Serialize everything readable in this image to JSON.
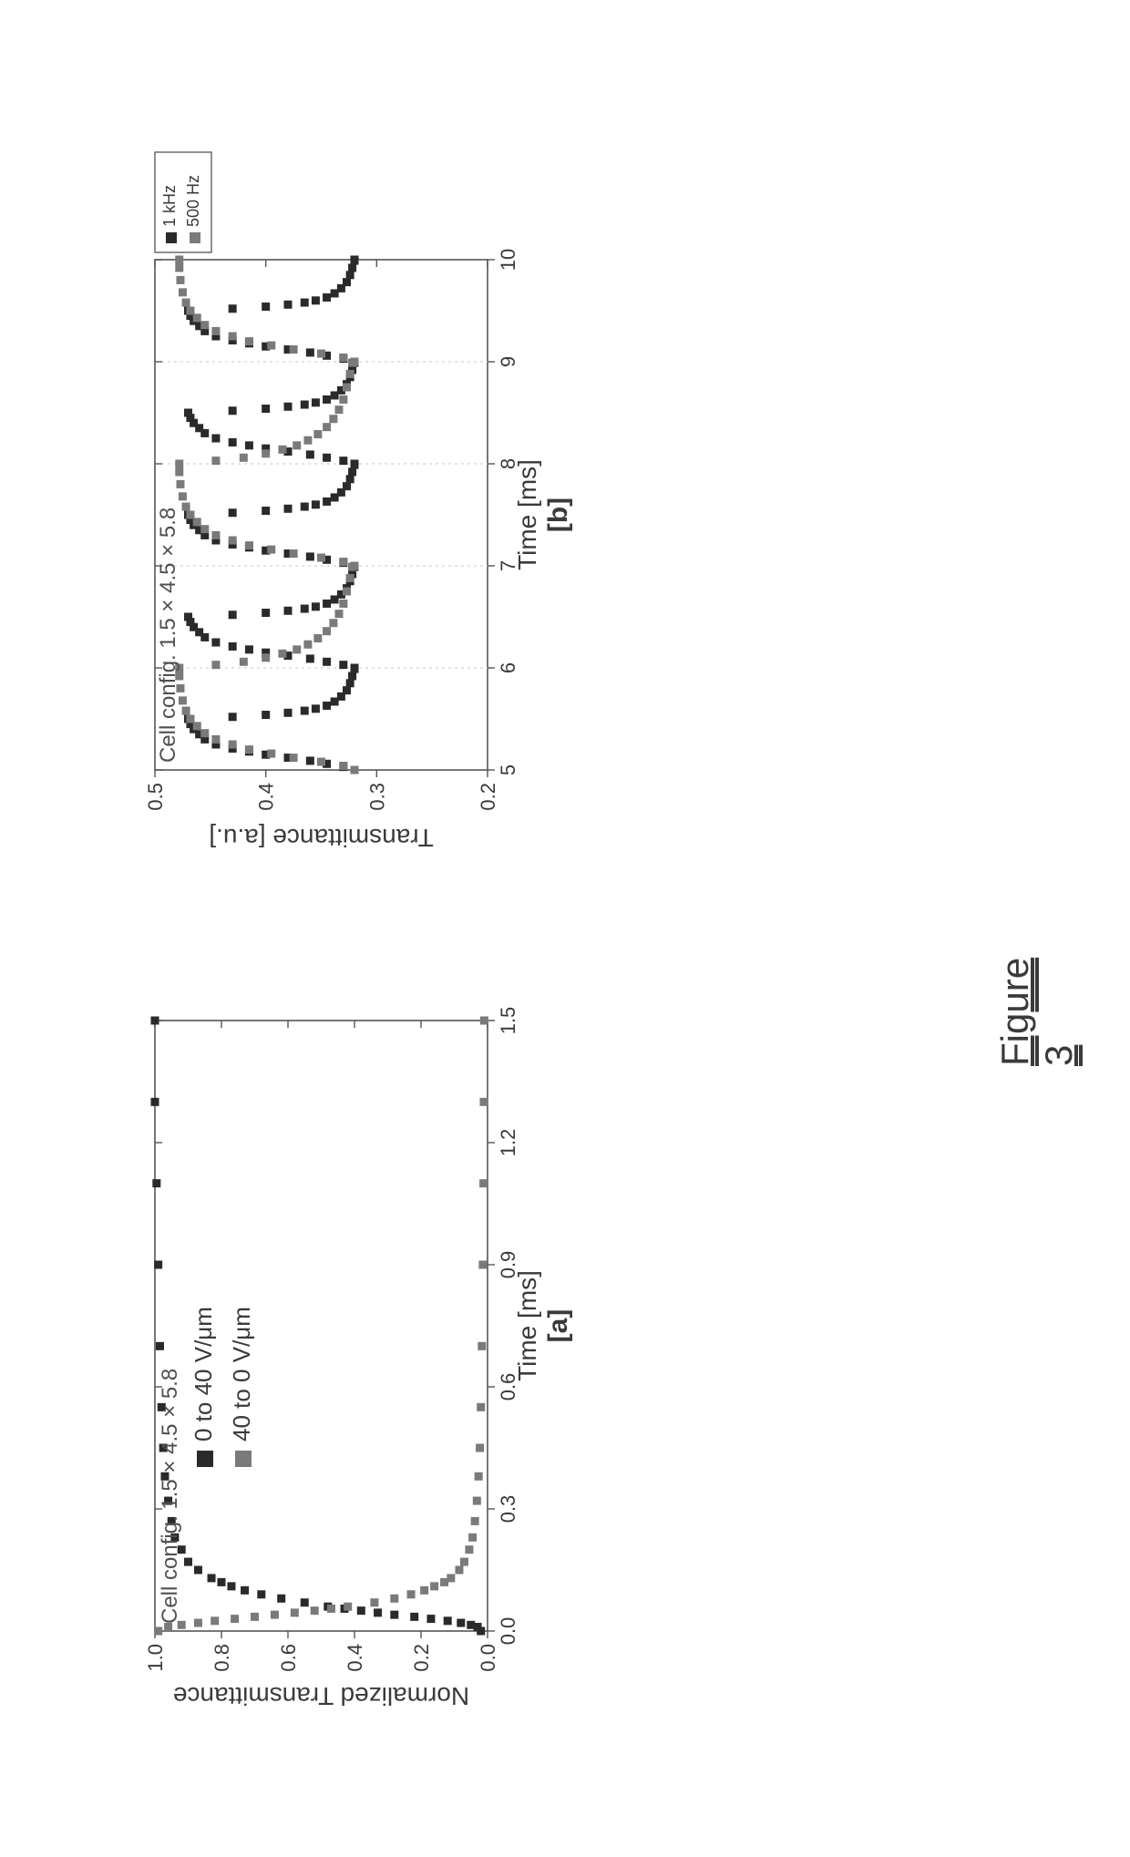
{
  "caption": "Figure 3",
  "chart_a": {
    "type": "scatter",
    "title": "Cell config. 1.5 × 4.5 × 5.8",
    "xlabel": "Time [ms]",
    "ylabel": "Normalized Transmittance",
    "subfig": "[a]",
    "xlim": [
      0.0,
      1.5
    ],
    "ylim": [
      0.0,
      1.0
    ],
    "xticks": [
      0.0,
      0.3,
      0.6,
      0.9,
      1.2,
      1.5
    ],
    "yticks": [
      0.0,
      0.2,
      0.4,
      0.6,
      0.8,
      1.0
    ],
    "tick_fontsize": 22,
    "label_fontsize": 28,
    "title_fontsize": 24,
    "background_color": "#ffffff",
    "border_color": "#555555",
    "marker_size": 9,
    "series": [
      {
        "name": "0 to 40 V/μm",
        "label": "0 to 40 V/μm",
        "color": "#2a2a2a",
        "marker": "square",
        "points": [
          [
            0.0,
            0.02
          ],
          [
            0.01,
            0.03
          ],
          [
            0.015,
            0.05
          ],
          [
            0.02,
            0.08
          ],
          [
            0.025,
            0.12
          ],
          [
            0.03,
            0.17
          ],
          [
            0.035,
            0.22
          ],
          [
            0.04,
            0.28
          ],
          [
            0.045,
            0.33
          ],
          [
            0.05,
            0.38
          ],
          [
            0.055,
            0.43
          ],
          [
            0.06,
            0.48
          ],
          [
            0.07,
            0.55
          ],
          [
            0.08,
            0.62
          ],
          [
            0.09,
            0.68
          ],
          [
            0.1,
            0.73
          ],
          [
            0.11,
            0.77
          ],
          [
            0.12,
            0.8
          ],
          [
            0.13,
            0.83
          ],
          [
            0.15,
            0.87
          ],
          [
            0.17,
            0.9
          ],
          [
            0.2,
            0.92
          ],
          [
            0.23,
            0.94
          ],
          [
            0.27,
            0.95
          ],
          [
            0.32,
            0.96
          ],
          [
            0.38,
            0.97
          ],
          [
            0.45,
            0.975
          ],
          [
            0.55,
            0.98
          ],
          [
            0.7,
            0.985
          ],
          [
            0.9,
            0.99
          ],
          [
            1.1,
            0.995
          ],
          [
            1.3,
            1.0
          ],
          [
            1.5,
            1.0
          ]
        ]
      },
      {
        "name": "40 to 0 V/μm",
        "label": "40 to 0 V/μm",
        "color": "#7a7a7a",
        "marker": "square",
        "points": [
          [
            0.0,
            0.99
          ],
          [
            0.01,
            0.96
          ],
          [
            0.015,
            0.92
          ],
          [
            0.02,
            0.87
          ],
          [
            0.025,
            0.82
          ],
          [
            0.03,
            0.76
          ],
          [
            0.035,
            0.7
          ],
          [
            0.04,
            0.64
          ],
          [
            0.045,
            0.58
          ],
          [
            0.05,
            0.52
          ],
          [
            0.055,
            0.47
          ],
          [
            0.06,
            0.42
          ],
          [
            0.07,
            0.34
          ],
          [
            0.08,
            0.28
          ],
          [
            0.09,
            0.23
          ],
          [
            0.1,
            0.19
          ],
          [
            0.11,
            0.16
          ],
          [
            0.12,
            0.13
          ],
          [
            0.13,
            0.11
          ],
          [
            0.15,
            0.085
          ],
          [
            0.17,
            0.07
          ],
          [
            0.2,
            0.055
          ],
          [
            0.23,
            0.045
          ],
          [
            0.27,
            0.038
          ],
          [
            0.32,
            0.032
          ],
          [
            0.38,
            0.027
          ],
          [
            0.45,
            0.023
          ],
          [
            0.55,
            0.02
          ],
          [
            0.7,
            0.017
          ],
          [
            0.9,
            0.014
          ],
          [
            1.1,
            0.012
          ],
          [
            1.3,
            0.011
          ],
          [
            1.5,
            0.01
          ]
        ]
      }
    ],
    "legend": {
      "position": "inside-upper-right",
      "items": [
        {
          "label": "0 to 40 V/μm",
          "color": "#2a2a2a"
        },
        {
          "label": "40 to 0 V/μm",
          "color": "#7a7a7a"
        }
      ]
    }
  },
  "chart_b": {
    "type": "scatter",
    "title": "Cell config. 1.5 × 4.5 × 5.8",
    "xlabel": "Time [ms]",
    "ylabel": "Transmittance [a.u.]",
    "subfig": "[b]",
    "xlim": [
      5,
      10
    ],
    "ylim": [
      0.2,
      0.5
    ],
    "xticks": [
      5,
      6,
      7,
      8,
      9,
      10
    ],
    "yticks": [
      0.2,
      0.3,
      0.4,
      0.5
    ],
    "tick_fontsize": 22,
    "label_fontsize": 28,
    "title_fontsize": 24,
    "background_color": "#ffffff",
    "border_color": "#555555",
    "grid_color": "#c8c8c8",
    "grid_x": [
      6,
      7,
      8,
      9
    ],
    "marker_size": 9,
    "series": [
      {
        "name": "1 kHz",
        "label": "1 kHz",
        "color": "#2a2a2a",
        "marker": "square",
        "period": 1.0,
        "cycle": [
          [
            0.0,
            0.32
          ],
          [
            0.03,
            0.33
          ],
          [
            0.06,
            0.345
          ],
          [
            0.09,
            0.36
          ],
          [
            0.12,
            0.38
          ],
          [
            0.15,
            0.4
          ],
          [
            0.18,
            0.415
          ],
          [
            0.21,
            0.43
          ],
          [
            0.25,
            0.445
          ],
          [
            0.3,
            0.455
          ],
          [
            0.35,
            0.46
          ],
          [
            0.4,
            0.465
          ],
          [
            0.45,
            0.468
          ],
          [
            0.5,
            0.47
          ],
          [
            0.52,
            0.43
          ],
          [
            0.54,
            0.4
          ],
          [
            0.56,
            0.38
          ],
          [
            0.58,
            0.365
          ],
          [
            0.6,
            0.355
          ],
          [
            0.63,
            0.345
          ],
          [
            0.67,
            0.338
          ],
          [
            0.72,
            0.332
          ],
          [
            0.78,
            0.327
          ],
          [
            0.85,
            0.324
          ],
          [
            0.92,
            0.322
          ],
          [
            0.99,
            0.32
          ]
        ]
      },
      {
        "name": "500 Hz",
        "label": "500 Hz",
        "color": "#7a7a7a",
        "marker": "square",
        "period": 2.0,
        "cycle": [
          [
            0.0,
            0.32
          ],
          [
            0.04,
            0.33
          ],
          [
            0.08,
            0.35
          ],
          [
            0.12,
            0.375
          ],
          [
            0.16,
            0.395
          ],
          [
            0.2,
            0.415
          ],
          [
            0.25,
            0.43
          ],
          [
            0.3,
            0.445
          ],
          [
            0.36,
            0.455
          ],
          [
            0.43,
            0.462
          ],
          [
            0.5,
            0.468
          ],
          [
            0.58,
            0.472
          ],
          [
            0.68,
            0.475
          ],
          [
            0.8,
            0.477
          ],
          [
            0.92,
            0.478
          ],
          [
            1.0,
            0.478
          ],
          [
            1.03,
            0.445
          ],
          [
            1.06,
            0.42
          ],
          [
            1.1,
            0.4
          ],
          [
            1.14,
            0.385
          ],
          [
            1.18,
            0.372
          ],
          [
            1.23,
            0.362
          ],
          [
            1.29,
            0.353
          ],
          [
            1.36,
            0.345
          ],
          [
            1.44,
            0.339
          ],
          [
            1.53,
            0.334
          ],
          [
            1.63,
            0.33
          ],
          [
            1.75,
            0.327
          ],
          [
            1.88,
            0.324
          ],
          [
            1.99,
            0.322
          ]
        ]
      }
    ],
    "legend": {
      "position": "outside-right-top",
      "items": [
        {
          "label": "1 kHz",
          "color": "#2a2a2a"
        },
        {
          "label": "500 Hz",
          "color": "#7a7a7a"
        }
      ]
    }
  }
}
